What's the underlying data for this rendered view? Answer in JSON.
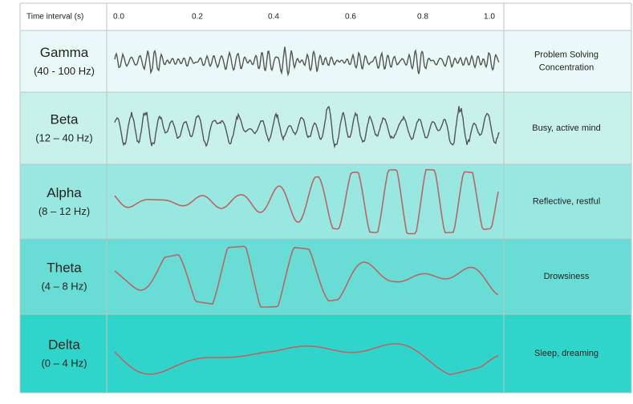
{
  "header": {
    "title": "Time interval (s)",
    "ticks": [
      "0.0",
      "0.2",
      "0.4",
      "0.6",
      "0.8",
      "1.0"
    ]
  },
  "rows": [
    {
      "name": "Gamma",
      "range": "(40 - 100 Hz)",
      "description": [
        "Problem Solving",
        "Concentration"
      ]
    },
    {
      "name": "Beta",
      "range": "(12 – 40 Hz)",
      "description": [
        "Busy, active mind"
      ]
    },
    {
      "name": "Alpha",
      "range": "(8 – 12 Hz)",
      "description": [
        "Reflective, restful"
      ]
    },
    {
      "name": "Theta",
      "range": "(4 – 8 Hz)",
      "description": [
        "Drowsiness"
      ]
    },
    {
      "name": "Delta",
      "range": "(0 – 4 Hz)",
      "description": [
        "Sleep, dreaming"
      ]
    }
  ]
}
